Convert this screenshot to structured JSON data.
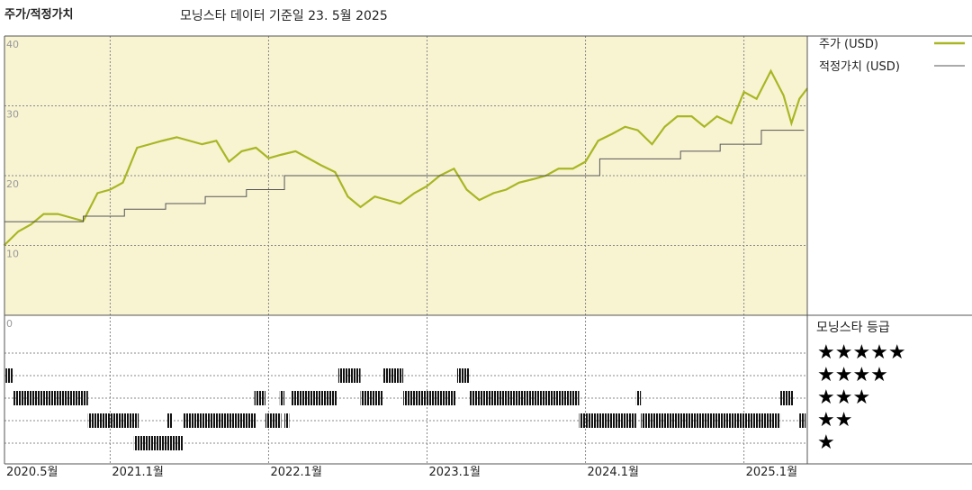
{
  "header": {
    "title": "주가/적정가치",
    "subtitle": "모닝스타 데이터 기준일 23. 5월 2025"
  },
  "chart_data": [
    {
      "type": "line",
      "xlim": [
        2020.333,
        2025.4
      ],
      "xticks": [
        {
          "value": 2020.333,
          "label": "2020.5월"
        },
        {
          "value": 2021,
          "label": "2021.1월"
        },
        {
          "value": 2022,
          "label": "2022.1월"
        },
        {
          "value": 2023,
          "label": "2023.1월"
        },
        {
          "value": 2024,
          "label": "2024.1월"
        },
        {
          "value": 2025,
          "label": "2025.1월"
        }
      ],
      "ylim": [
        0,
        40
      ],
      "yticks": [
        0,
        10,
        20,
        30,
        40
      ],
      "grid": true,
      "series": [
        {
          "name": "주가 (USD)",
          "color": "#a9b624",
          "x": [
            2020.33,
            2020.42,
            2020.5,
            2020.58,
            2020.67,
            2020.75,
            2020.83,
            2020.92,
            2021.0,
            2021.08,
            2021.17,
            2021.25,
            2021.33,
            2021.42,
            2021.5,
            2021.58,
            2021.67,
            2021.75,
            2021.83,
            2021.92,
            2022.0,
            2022.08,
            2022.17,
            2022.25,
            2022.33,
            2022.42,
            2022.5,
            2022.58,
            2022.67,
            2022.75,
            2022.83,
            2022.92,
            2023.0,
            2023.08,
            2023.17,
            2023.25,
            2023.33,
            2023.42,
            2023.5,
            2023.58,
            2023.67,
            2023.75,
            2023.83,
            2023.92,
            2024.0,
            2024.08,
            2024.17,
            2024.25,
            2024.33,
            2024.42,
            2024.5,
            2024.58,
            2024.67,
            2024.75,
            2024.83,
            2024.92,
            2025.0,
            2025.08,
            2025.17,
            2025.25,
            2025.3,
            2025.35,
            2025.4
          ],
          "values": [
            10,
            12,
            13,
            14.5,
            14.5,
            14,
            13.5,
            17.5,
            18,
            19,
            24,
            24.5,
            25,
            25.5,
            25,
            24.5,
            25,
            22,
            23.5,
            24,
            22.5,
            23,
            23.5,
            22.5,
            21.5,
            20.5,
            17,
            15.5,
            17,
            16.5,
            16,
            17.5,
            18.5,
            20,
            21,
            18,
            16.5,
            17.5,
            18,
            19,
            19.5,
            20,
            21,
            21,
            22,
            25,
            26,
            27,
            26.5,
            24.5,
            27,
            28.5,
            28.5,
            27,
            28.5,
            27.5,
            32,
            31,
            35,
            31.5,
            27.5,
            31,
            32.5
          ]
        },
        {
          "name": "적정가치 (USD)",
          "color": "#555555",
          "x": [
            2020.33,
            2020.83,
            2020.83,
            2021.09,
            2021.09,
            2021.35,
            2021.35,
            2021.6,
            2021.6,
            2021.86,
            2021.86,
            2022.1,
            2022.1,
            2024.09,
            2024.09,
            2024.6,
            2024.6,
            2024.85,
            2024.85,
            2025.11,
            2025.11,
            2025.38
          ],
          "values": [
            13.4,
            13.4,
            14.2,
            14.2,
            15.2,
            15.2,
            16,
            16,
            17,
            17,
            18,
            18,
            20,
            20,
            22.4,
            22.4,
            23.5,
            23.5,
            24.5,
            24.5,
            26.5,
            26.5
          ]
        }
      ]
    },
    {
      "type": "timeline",
      "title": "모닝스타 등급",
      "levels": [
        {
          "value": 5,
          "label": "★★★★★"
        },
        {
          "value": 4,
          "label": "★★★★"
        },
        {
          "value": 3,
          "label": "★★★"
        },
        {
          "value": 2,
          "label": "★★"
        },
        {
          "value": 1,
          "label": "★"
        }
      ],
      "ratings": [
        {
          "stars": 4,
          "start": 2020.34,
          "end": 2020.39
        },
        {
          "stars": 4,
          "start": 2022.44,
          "end": 2022.58
        },
        {
          "stars": 4,
          "start": 2022.72,
          "end": 2022.85
        },
        {
          "stars": 4,
          "start": 2023.19,
          "end": 2023.27
        },
        {
          "stars": 3,
          "start": 2020.39,
          "end": 2020.86
        },
        {
          "stars": 3,
          "start": 2021.91,
          "end": 2021.98
        },
        {
          "stars": 3,
          "start": 2022.07,
          "end": 2022.1
        },
        {
          "stars": 3,
          "start": 2022.14,
          "end": 2022.43
        },
        {
          "stars": 3,
          "start": 2022.58,
          "end": 2022.72
        },
        {
          "stars": 3,
          "start": 2022.85,
          "end": 2023.18
        },
        {
          "stars": 3,
          "start": 2023.27,
          "end": 2023.96
        },
        {
          "stars": 3,
          "start": 2024.32,
          "end": 2024.35
        },
        {
          "stars": 3,
          "start": 2025.23,
          "end": 2025.31
        },
        {
          "stars": 2,
          "start": 2020.86,
          "end": 2021.18
        },
        {
          "stars": 2,
          "start": 2021.36,
          "end": 2021.39
        },
        {
          "stars": 2,
          "start": 2021.46,
          "end": 2021.92
        },
        {
          "stars": 2,
          "start": 2021.98,
          "end": 2022.08
        },
        {
          "stars": 2,
          "start": 2022.1,
          "end": 2022.13
        },
        {
          "stars": 2,
          "start": 2023.96,
          "end": 2024.32
        },
        {
          "stars": 2,
          "start": 2024.35,
          "end": 2025.23
        },
        {
          "stars": 2,
          "start": 2025.35,
          "end": 2025.39
        },
        {
          "stars": 1,
          "start": 2021.15,
          "end": 2021.46
        }
      ]
    }
  ]
}
